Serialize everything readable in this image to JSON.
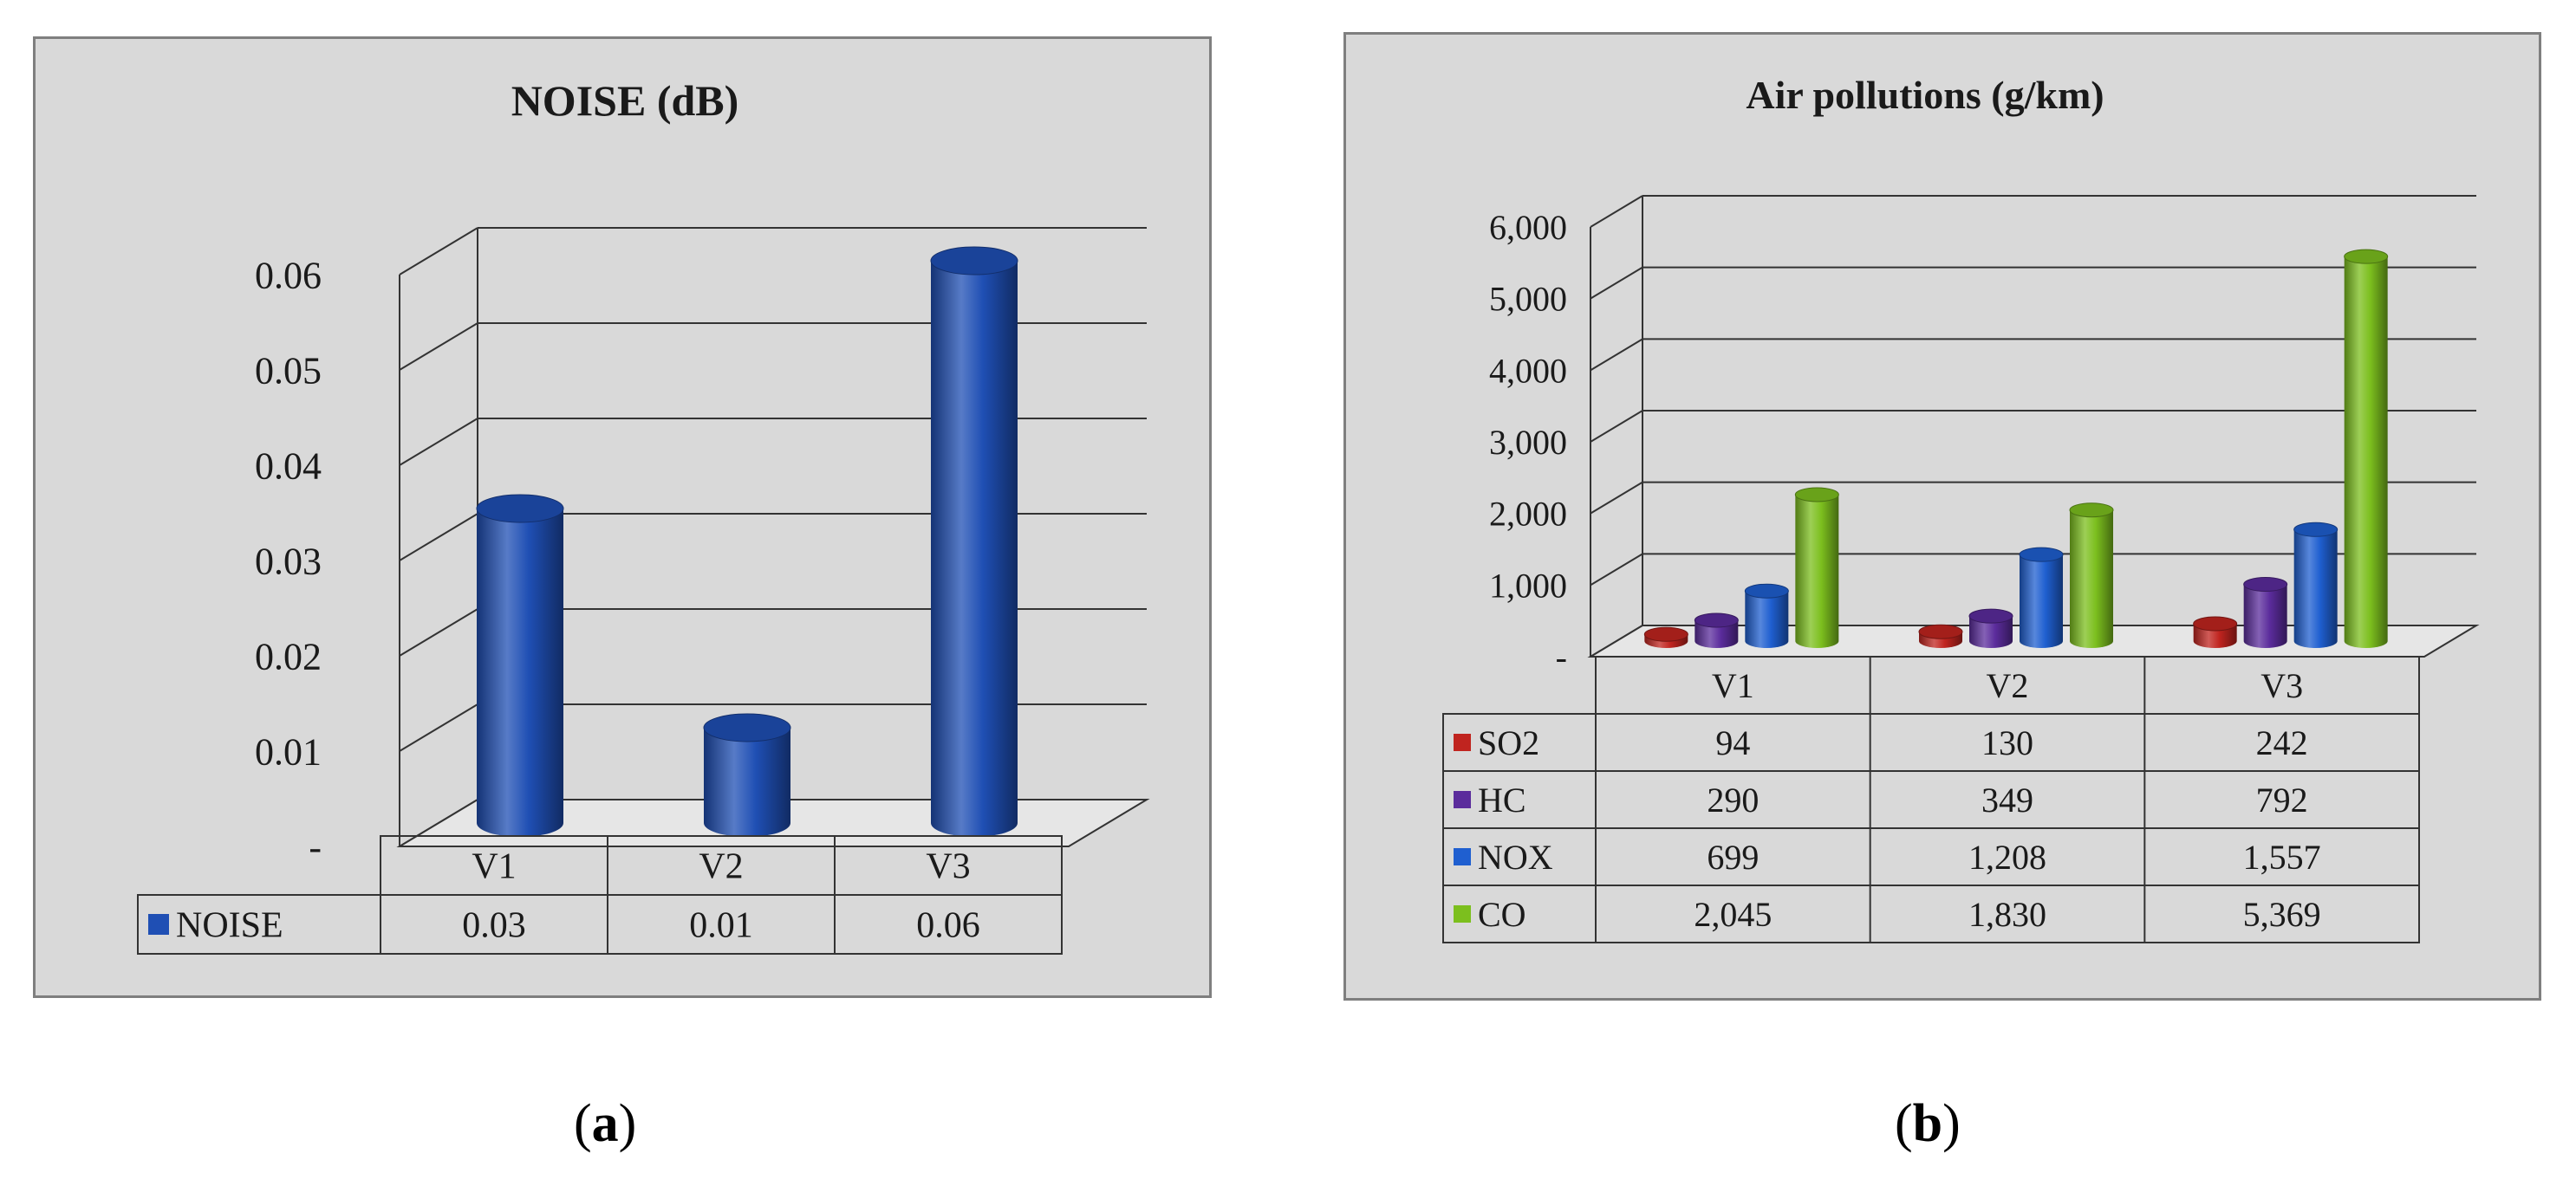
{
  "chart_data": [
    {
      "type": "bar",
      "title": "NOISE (dB)",
      "categories": [
        "V1",
        "V2",
        "V3"
      ],
      "series": [
        {
          "name": "NOISE",
          "values": [
            0.033,
            0.01,
            0.059
          ],
          "table_values": [
            "0.03",
            "0.01",
            "0.06"
          ],
          "color": "#1f4fb4"
        }
      ],
      "ylim": [
        0,
        0.06
      ],
      "yticks": [
        "-",
        "0.01",
        "0.02",
        "0.03",
        "0.04",
        "0.05",
        "0.06"
      ],
      "grid": true,
      "style": "3d-cylinder",
      "legend": "data-table"
    },
    {
      "type": "bar",
      "title": "Air pollutions (g/km)",
      "categories": [
        "V1",
        "V2",
        "V3"
      ],
      "series": [
        {
          "name": "SO2",
          "values": [
            94,
            130,
            242
          ],
          "table_values": [
            "94",
            "130",
            "242"
          ],
          "color": "#c0241f"
        },
        {
          "name": "HC",
          "values": [
            290,
            349,
            792
          ],
          "table_values": [
            "290",
            "349",
            "792"
          ],
          "color": "#5b2c9c"
        },
        {
          "name": "NOX",
          "values": [
            699,
            1208,
            1557
          ],
          "table_values": [
            "699",
            "1,208",
            "1,557"
          ],
          "color": "#1f5fd0"
        },
        {
          "name": "CO",
          "values": [
            2045,
            1830,
            5369
          ],
          "table_values": [
            "2,045",
            "1,830",
            "5,369"
          ],
          "color": "#7cbf1e"
        }
      ],
      "ylim": [
        0,
        6000
      ],
      "yticks": [
        "-",
        "1,000",
        "2,000",
        "3,000",
        "4,000",
        "5,000",
        "6,000"
      ],
      "grid": true,
      "style": "3d-cylinder",
      "legend": "data-table"
    }
  ],
  "captions": {
    "a_open": "(",
    "a": "a",
    "a_close": ")",
    "b_open": "(",
    "b": "b",
    "b_close": ")"
  }
}
